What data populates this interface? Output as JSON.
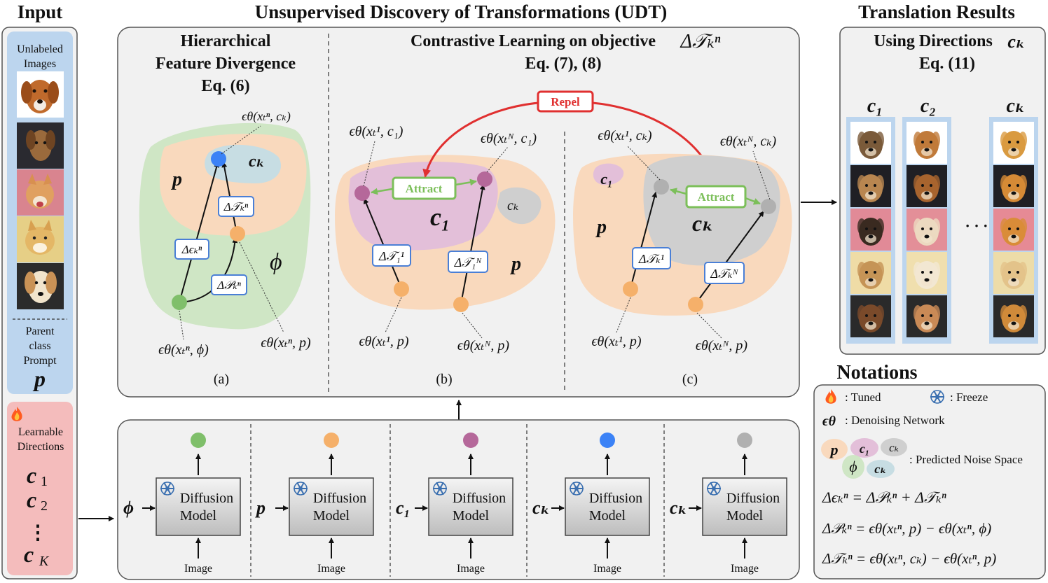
{
  "titles": {
    "input": "Input",
    "udt": "Unsupervised Discovery of Transformations (UDT)",
    "results": "Translation Results",
    "notations": "Notations"
  },
  "input_panel": {
    "unlabeled_line1": "Unlabeled",
    "unlabeled_line2": "Images",
    "parent_line1": "Parent",
    "parent_line2": "class",
    "parent_line3": "Prompt",
    "parent_symbol": "p",
    "learnable_line1": "Learnable",
    "learnable_line2": "Directions",
    "dir1": "c",
    "dir1_sub": "1",
    "dir2": "c",
    "dir2_sub": "2",
    "dirk": "c",
    "dirk_sub": "K",
    "dots": "⋮",
    "tuned_icon": "flame-icon"
  },
  "panel_a": {
    "header_line1": "Hierarchical",
    "header_line2": "Feature Divergence",
    "header_line3": "Eq. (6)",
    "label_p": "p",
    "label_ck": "cₖ",
    "label_phi": "ϕ",
    "delta_eps": "Δϵₖⁿ",
    "delta_p": "Δ𝒫ₖⁿ",
    "delta_t": "Δ𝒯ₖⁿ",
    "eq_top": "ϵθ(xₜⁿ, cₖ)",
    "eq_left": "ϵθ(xₜⁿ, ϕ)",
    "eq_right": "ϵθ(xₜⁿ, p)",
    "caption": "(a)"
  },
  "panel_b": {
    "header_line1": "Contrastive Learning on objective",
    "header_sym": "Δ𝒯ₖⁿ",
    "header_line2": "Eq. (7), (8)",
    "repel": "Repel",
    "attract": "Attract",
    "label_c1": "c₁",
    "label_ck": "cₖ",
    "label_p": "p",
    "delta_t1": "Δ𝒯₁¹",
    "delta_tn": "Δ𝒯₁ᴺ",
    "eq_tl": "ϵθ(xₜ¹, c₁)",
    "eq_tr": "ϵθ(xₜᴺ, c₁)",
    "eq_bl": "ϵθ(xₜ¹, p)",
    "eq_br": "ϵθ(xₜᴺ, p)",
    "caption": "(b)"
  },
  "panel_c": {
    "attract": "Attract",
    "label_c1": "c₁",
    "label_ck": "cₖ",
    "label_p": "p",
    "delta_t1": "Δ𝒯ₖ¹",
    "delta_tn": "Δ𝒯ₖᴺ",
    "eq_tl": "ϵθ(xₜ¹, cₖ)",
    "eq_tr": "ϵθ(xₜᴺ, cₖ)",
    "eq_bl": "ϵθ(xₜ¹, p)",
    "eq_br": "ϵθ(xₜᴺ, p)",
    "caption": "(c)"
  },
  "diffusion_row": {
    "model_line1": "Diffusion",
    "model_line2": "Model",
    "image_label": "Image",
    "freeze_icon": "snowflake-icon",
    "inputs": [
      {
        "symbol": "ϕ",
        "color": "#7fbf6a"
      },
      {
        "symbol": "p",
        "color": "#f5b06a"
      },
      {
        "symbol": "c₁",
        "color": "#b5689a"
      },
      {
        "symbol": "cₖ",
        "color": "#3b82f6"
      },
      {
        "symbol": "cₖ",
        "color": "#b0b0b0"
      }
    ]
  },
  "results_panel": {
    "header_line1": "Using Directions",
    "header_sym": "cₖ",
    "header_line2": "Eq. (11)",
    "col1": "c₁",
    "col2": "c₂",
    "colk": "cₖ",
    "ellipsis": "· · ·"
  },
  "notations": {
    "tuned": ": Tuned",
    "freeze": ": Freeze",
    "denoise_sym": "ϵθ",
    "denoise": ": Denoising Network",
    "blob_p": "p",
    "blob_c1": "c₁",
    "blob_ck": "cₖ",
    "blob_phi": "ϕ",
    "blob_ck2": "cₖ",
    "space": ":  Predicted Noise Space",
    "eq1": "Δϵₖⁿ  = Δ𝒫ₖⁿ + Δ𝒯ₖⁿ",
    "eq2": "Δ𝒫ₖⁿ = ϵθ(xₜⁿ, p) − ϵθ(xₜⁿ, ϕ)",
    "eq3": "Δ𝒯ₖⁿ = ϵθ(xₜⁿ, cₖ) − ϵθ(xₜⁿ, p)"
  },
  "colors": {
    "green_point": "#7fbf6a",
    "orange_point": "#f5b06a",
    "purple_point": "#b5689a",
    "blue_point": "#3b82f6",
    "gray_point": "#b0b0b0",
    "repel": "#e03030",
    "attract": "#7cbf5a",
    "box_blue": "#4a7fd6"
  }
}
